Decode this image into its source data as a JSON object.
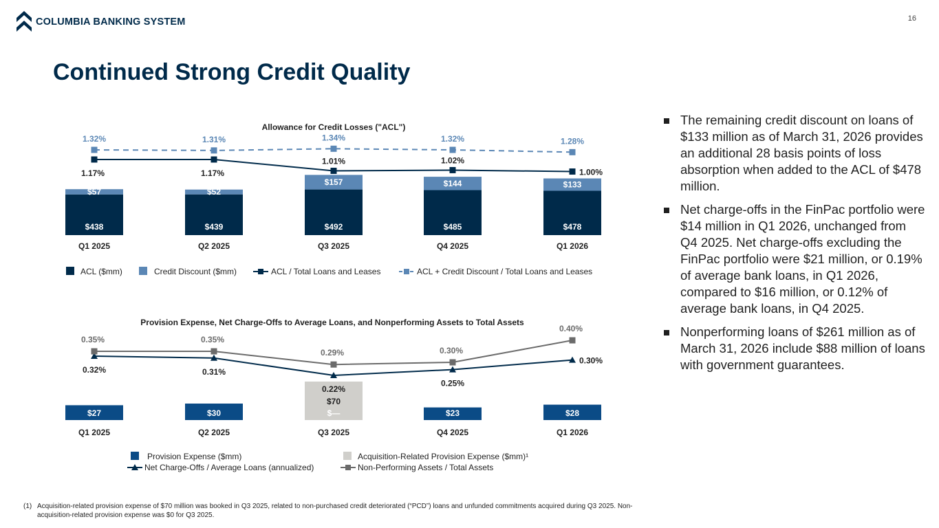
{
  "header": {
    "logo_text": "COLUMBIA BANKING SYSTEM",
    "page_number": "16",
    "brand_color": "#002a4a"
  },
  "title": "Continued Strong Credit Quality",
  "chart_data": [
    {
      "type": "bar",
      "title": "Allowance for Credit Losses (\"ACL\")",
      "stacked": true,
      "categories": [
        "Q1 2025",
        "Q2 2025",
        "Q3 2025",
        "Q4 2025",
        "Q1 2026"
      ],
      "series": [
        {
          "name": "ACL ($mm)",
          "type": "bar",
          "color": "#002a4a",
          "values": [
            438,
            439,
            492,
            485,
            478
          ],
          "labels": [
            "$438",
            "$439",
            "$492",
            "$485",
            "$478"
          ]
        },
        {
          "name": "Credit Discount ($mm)",
          "type": "bar",
          "color": "#5b87b5",
          "values": [
            57,
            52,
            157,
            144,
            133
          ],
          "labels": [
            "$57",
            "$52",
            "$157",
            "$144",
            "$133"
          ]
        },
        {
          "name": "ACL / Total Loans and Leases",
          "type": "line",
          "color": "#002a4a",
          "values": [
            1.17,
            1.17,
            1.01,
            1.02,
            1.0
          ],
          "labels": [
            "1.17%",
            "1.17%",
            "1.01%",
            "1.02%",
            "1.00%"
          ]
        },
        {
          "name": "ACL + Credit Discount / Total Loans and Leases",
          "type": "line",
          "style": "dashed",
          "color": "#5b87b5",
          "values": [
            1.32,
            1.31,
            1.34,
            1.32,
            1.28
          ],
          "labels": [
            "1.32%",
            "1.31%",
            "1.34%",
            "1.32%",
            "1.28%"
          ]
        }
      ],
      "legend": "bottom"
    },
    {
      "type": "bar",
      "title": "Provision Expense, Net Charge-Offs to Average Loans, and Nonperforming Assets to Total Assets",
      "stacked": true,
      "categories": [
        "Q1 2025",
        "Q2 2025",
        "Q3 2025",
        "Q4 2025",
        "Q1 2026"
      ],
      "series": [
        {
          "name": "Provision Expense ($mm)",
          "type": "bar",
          "color": "#0b4b86",
          "values": [
            27,
            30,
            0,
            23,
            28
          ],
          "labels": [
            "$27",
            "$30",
            "$—",
            "$23",
            "$28"
          ]
        },
        {
          "name": "Acquisition-Related Provision Expense ($mm)¹",
          "type": "bar",
          "color": "#d0cfcb",
          "values": [
            0,
            0,
            70,
            0,
            0
          ],
          "labels": [
            "",
            "",
            "$70",
            "",
            ""
          ]
        },
        {
          "name": "Net Charge-Offs / Average Loans (annualized)",
          "type": "line",
          "color": "#002a4a",
          "marker": "triangle",
          "values": [
            0.32,
            0.31,
            0.22,
            0.25,
            0.3
          ],
          "labels": [
            "0.32%",
            "0.31%",
            "0.22%",
            "0.25%",
            "0.30%"
          ]
        },
        {
          "name": "Non-Performing Assets / Total Assets",
          "type": "line",
          "color": "#6b6b6b",
          "marker": "square",
          "values": [
            0.35,
            0.35,
            0.29,
            0.3,
            0.4
          ],
          "labels": [
            "0.35%",
            "0.35%",
            "0.29%",
            "0.30%",
            "0.40%"
          ]
        }
      ],
      "legend": "bottom"
    }
  ],
  "bullets": [
    "The remaining credit discount on loans of $133 million as of March 31, 2026 provides an additional 28 basis points of loss absorption when added to the ACL of $478 million.",
    "Net charge-offs in the FinPac portfolio were $14 million in Q1 2026, unchanged from Q4 2025. Net charge-offs excluding the FinPac portfolio were $21 million, or 0.19% of average bank loans, in Q1 2026, compared to $16 million, or 0.12% of average bank loans, in Q4 2025.",
    "Nonperforming loans of $261 million as of March 31, 2026 include $88 million of loans with government guarantees."
  ],
  "footnote": {
    "marker": "(1)",
    "text": "Acquisition-related provision expense of $70 million was booked in Q3 2025, related to non-purchased credit deteriorated (“PCD”) loans and unfunded commitments acquired during Q3 2025. Non-acquisition-related provision expense was $0 for Q3 2025."
  }
}
